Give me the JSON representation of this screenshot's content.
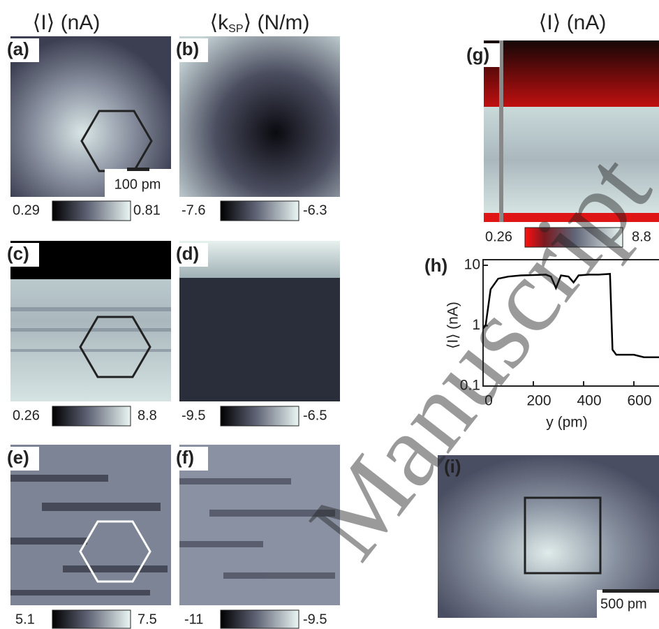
{
  "panels": {
    "title_left": "⟨I⟩ (nA)",
    "title_mid": {
      "pre": "⟨k",
      "sub": "SP",
      "post": "⟩ (N/m)"
    },
    "title_right": "⟨I⟩ (nA)",
    "a": {
      "label": "(a)",
      "scale": "100 pm",
      "cbar": [
        "0.29",
        "0.81"
      ]
    },
    "b": {
      "label": "(b)",
      "cbar": [
        "-7.6",
        "-6.3"
      ]
    },
    "c": {
      "label": "(c)",
      "cbar": [
        "0.26",
        "8.8"
      ]
    },
    "d": {
      "label": "(d)",
      "cbar": [
        "-9.5",
        "-6.5"
      ]
    },
    "e": {
      "label": "(e)",
      "cbar": [
        "5.1",
        "7.5"
      ]
    },
    "f": {
      "label": "(f)",
      "cbar": [
        "-11",
        "-9.5"
      ]
    },
    "g": {
      "label": "(g)",
      "cbar": [
        "0.26",
        "8.8"
      ]
    },
    "i": {
      "label": "(i)",
      "scale": "500 pm"
    },
    "watermark": "Manuscript"
  },
  "chart_data": {
    "type": "line",
    "label": "(h)",
    "xlabel": "y (pm)",
    "ylabel": "⟨I⟩ (nA)",
    "x": [
      0,
      10,
      30,
      60,
      100,
      150,
      200,
      250,
      270,
      290,
      310,
      340,
      360,
      380,
      420,
      460,
      505,
      515,
      530,
      600,
      640,
      700
    ],
    "series": [
      {
        "color": "#000000",
        "values": [
          0.9,
          1.0,
          4,
          6,
          6.5,
          6.8,
          6.9,
          7,
          6.5,
          4.2,
          6.8,
          6.5,
          5.2,
          6.8,
          7,
          7,
          7.2,
          0.4,
          0.33,
          0.33,
          0.3,
          0.3
        ]
      }
    ],
    "xlim": [
      0,
      700
    ],
    "ylim": [
      0.1,
      10
    ],
    "xticks": [
      0,
      200,
      400,
      600
    ],
    "yticks": [
      0.1,
      1,
      10
    ],
    "log_y": true
  }
}
